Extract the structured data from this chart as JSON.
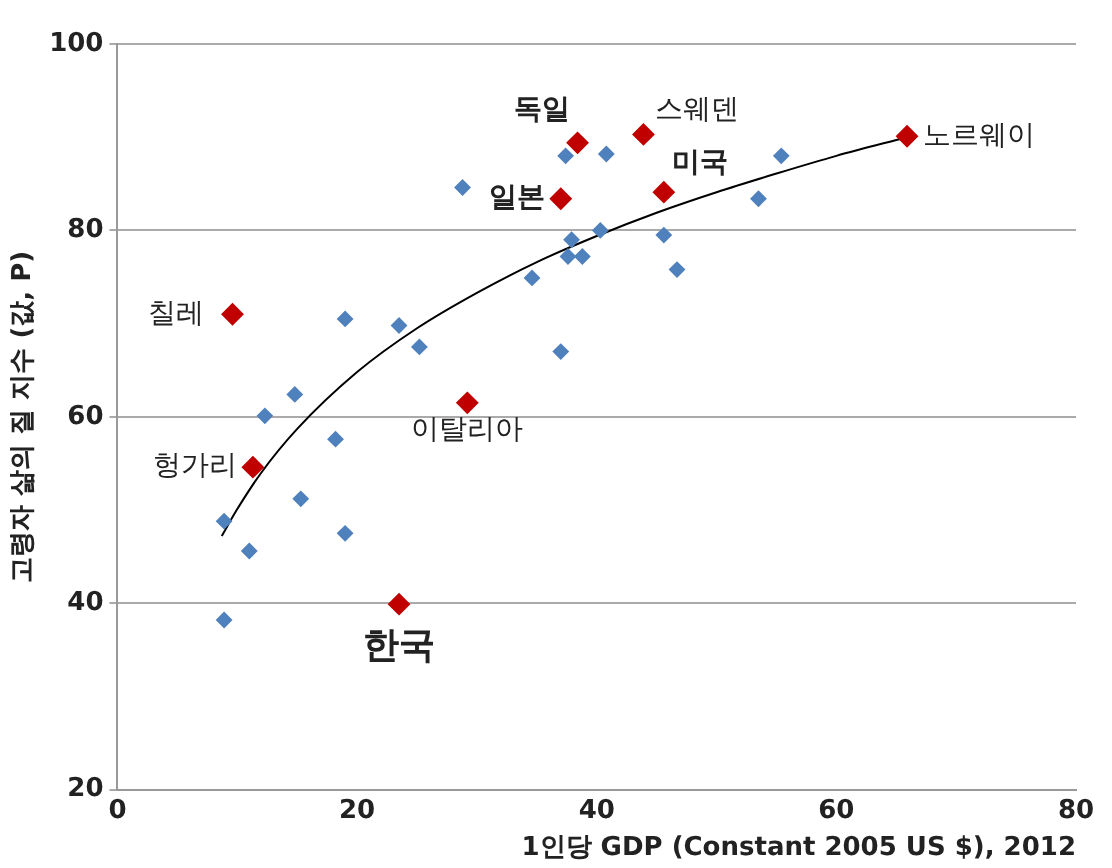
{
  "chart_data": {
    "type": "scatter",
    "xlabel": "1인당 GDP (Constant 2005 US $), 2012",
    "ylabel": "고령자 삶의 질 지수 (값, P)",
    "xlim": [
      0,
      80
    ],
    "xticks": [
      0,
      20,
      40,
      60,
      80
    ],
    "ylim": [
      20,
      100
    ],
    "yticks": [
      20,
      40,
      60,
      80,
      100
    ],
    "grid": "y",
    "legend": false,
    "marker": "diamond",
    "series": [
      {
        "color": "#4f81bd",
        "x": [
          28.8,
          37.4,
          40.8,
          37.9,
          37.6,
          38.8,
          34.6,
          37.0,
          19.0,
          23.5,
          25.2,
          14.8,
          12.3,
          18.2,
          15.3,
          8.9,
          11.0,
          19.0,
          8.9,
          40.3,
          45.6,
          46.7,
          53.5,
          55.4
        ],
        "values": [
          84.6,
          88.0,
          88.2,
          79.0,
          77.2,
          77.2,
          74.9,
          67.0,
          70.5,
          69.8,
          67.5,
          62.4,
          60.1,
          57.6,
          51.2,
          48.8,
          45.6,
          47.5,
          38.2,
          80.0,
          79.5,
          75.8,
          83.4,
          88.0
        ]
      },
      {
        "color": "#c00000",
        "x": [
          38.4,
          43.9,
          45.6,
          37.0,
          65.9,
          9.6,
          11.3,
          29.2,
          23.5
        ],
        "values": [
          89.4,
          90.3,
          84.1,
          83.4,
          90.1,
          71.0,
          54.6,
          61.5,
          39.9
        ]
      },
      {
        "type": "line",
        "marker": "none",
        "color": "#000000",
        "x": [
          8.7,
          10,
          12,
          15,
          20,
          25,
          30,
          35,
          40,
          45,
          50,
          55,
          60,
          65.9
        ],
        "values": [
          47.2,
          50.1,
          54.0,
          58.7,
          64.8,
          69.5,
          73.3,
          76.6,
          79.4,
          81.9,
          84.1,
          86.1,
          88.0,
          90.0
        ]
      }
    ],
    "annotations": [
      {
        "text": "독일",
        "x": 38.4,
        "y": 89.4
      },
      {
        "text": "스웨덴",
        "x": 43.9,
        "y": 90.3
      },
      {
        "text": "미국",
        "x": 45.6,
        "y": 84.1
      },
      {
        "text": "일본",
        "x": 37.0,
        "y": 83.4
      },
      {
        "text": "노르웨이",
        "x": 65.9,
        "y": 90.1
      },
      {
        "text": "칠레",
        "x": 9.6,
        "y": 71.0
      },
      {
        "text": "헝가리",
        "x": 11.3,
        "y": 54.6
      },
      {
        "text": "이탈리아",
        "x": 29.2,
        "y": 61.5
      },
      {
        "text": "한국",
        "x": 23.5,
        "y": 39.9
      }
    ]
  }
}
